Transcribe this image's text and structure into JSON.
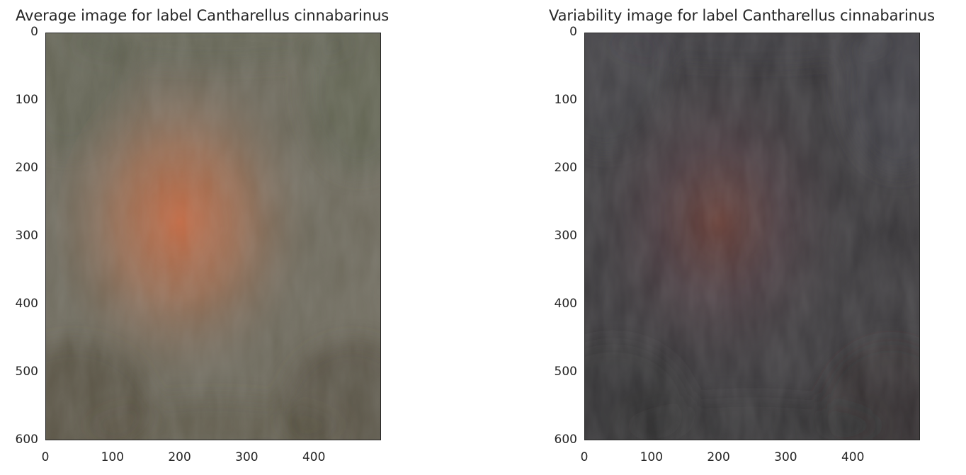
{
  "chart_data": [
    {
      "type": "image",
      "title": "Average image for label Cantharellus cinnabarinus",
      "xlabel": "",
      "ylabel": "",
      "xlim": [
        0,
        500
      ],
      "ylim": [
        600,
        0
      ],
      "xticks": [
        0,
        100,
        200,
        300,
        400
      ],
      "yticks": [
        0,
        100,
        200,
        300,
        400,
        500,
        600
      ],
      "grid": false,
      "colors": {
        "background": "#6e6a5c",
        "edge_tint": "#5d6150",
        "center_glow": "#c8673e",
        "mid_glow": "#a46e50",
        "dark_ring": "#4e4838"
      }
    },
    {
      "type": "image",
      "title": "Variability image for label Cantharellus cinnabarinus",
      "xlabel": "",
      "ylabel": "",
      "xlim": [
        0,
        500
      ],
      "ylim": [
        600,
        0
      ],
      "xticks": [
        0,
        100,
        200,
        300,
        400
      ],
      "yticks": [
        0,
        100,
        200,
        300,
        400,
        500,
        600
      ],
      "grid": false,
      "colors": {
        "background": "#3b393c",
        "edge_tint": "#45434a",
        "center_glow": "#6a3e36",
        "mid_glow": "#4c3a40",
        "dark_ring": "#2e2c2c"
      }
    }
  ]
}
